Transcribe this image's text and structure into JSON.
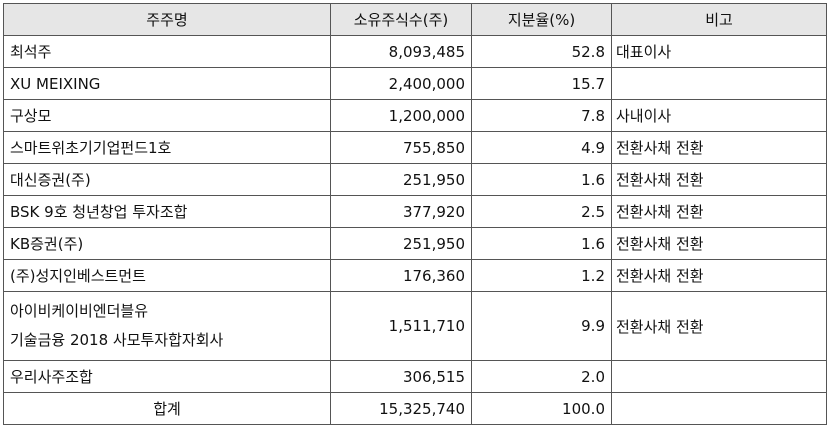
{
  "header": {
    "holder": "주주명",
    "shares": "소유주식수(주)",
    "ratio": "지분율(%)",
    "note": "비고"
  },
  "rows": [
    {
      "holder": "최석주",
      "shares": "8,093,485",
      "ratio": "52.8",
      "note": "대표이사"
    },
    {
      "holder": "XU MEIXING",
      "shares": "2,400,000",
      "ratio": "15.7",
      "note": ""
    },
    {
      "holder": "구상모",
      "shares": "1,200,000",
      "ratio": "7.8",
      "note": "사내이사"
    },
    {
      "holder": "스마트위초기기업펀드1호",
      "shares": "755,850",
      "ratio": "4.9",
      "note": "전환사채 전환"
    },
    {
      "holder": "대신증권(주)",
      "shares": "251,950",
      "ratio": "1.6",
      "note": "전환사채 전환"
    },
    {
      "holder": "BSK 9호 청년창업 투자조합",
      "shares": "377,920",
      "ratio": "2.5",
      "note": "전환사채 전환"
    },
    {
      "holder": "KB증권(주)",
      "shares": "251,950",
      "ratio": "1.6",
      "note": "전환사채 전환"
    },
    {
      "holder": "(주)성지인베스트먼트",
      "shares": "176,360",
      "ratio": "1.2",
      "note": "전환사채 전환"
    }
  ],
  "tall_row": {
    "holder_line1": "아이비케이비엔더블유",
    "holder_line2": "기술금융 2018 사모투자합자회사",
    "shares": "1,511,710",
    "ratio": "9.9",
    "note": "전환사채 전환"
  },
  "last_row": {
    "holder": "우리사주조합",
    "shares": "306,515",
    "ratio": "2.0",
    "note": ""
  },
  "total": {
    "label": "합계",
    "shares": "15,325,740",
    "ratio": "100.0",
    "note": ""
  }
}
